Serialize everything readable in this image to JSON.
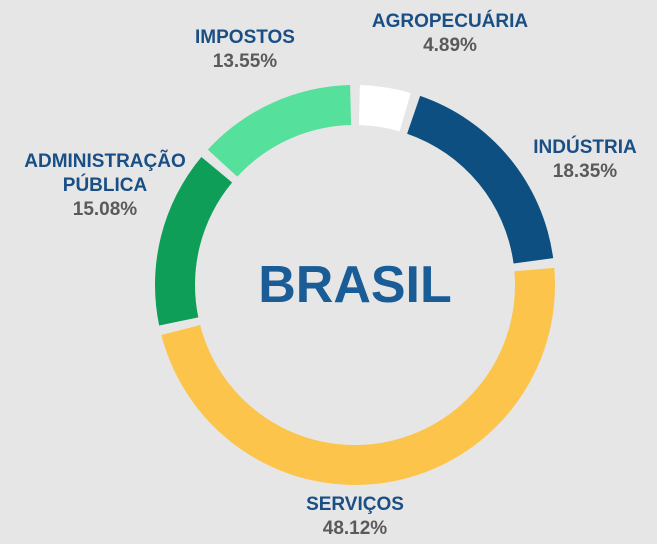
{
  "chart_data": {
    "type": "donut",
    "title": "BRASIL",
    "categories": [
      "AGROPECUÁRIA",
      "INDÚSTRIA",
      "SERVIÇOS",
      "ADMINISTRAÇÃO PÚBLICA",
      "IMPOSTOS"
    ],
    "values": [
      4.89,
      18.35,
      48.12,
      15.08,
      13.55
    ],
    "value_labels": [
      "4.89%",
      "18.35%",
      "48.12%",
      "15.08%",
      "13.55%"
    ],
    "colors": [
      "#ffffff",
      "#0c4f80",
      "#fdc44c",
      "#0e9e58",
      "#55e09b"
    ]
  }
}
